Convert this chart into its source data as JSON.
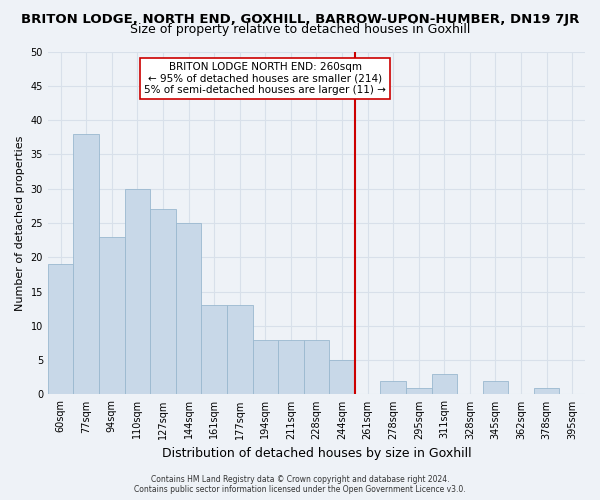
{
  "title": "BRITON LODGE, NORTH END, GOXHILL, BARROW-UPON-HUMBER, DN19 7JR",
  "subtitle": "Size of property relative to detached houses in Goxhill",
  "xlabel": "Distribution of detached houses by size in Goxhill",
  "ylabel": "Number of detached properties",
  "footer_line1": "Contains HM Land Registry data © Crown copyright and database right 2024.",
  "footer_line2": "Contains public sector information licensed under the Open Government Licence v3.0.",
  "bin_labels": [
    "60sqm",
    "77sqm",
    "94sqm",
    "110sqm",
    "127sqm",
    "144sqm",
    "161sqm",
    "177sqm",
    "194sqm",
    "211sqm",
    "228sqm",
    "244sqm",
    "261sqm",
    "278sqm",
    "295sqm",
    "311sqm",
    "328sqm",
    "345sqm",
    "362sqm",
    "378sqm",
    "395sqm"
  ],
  "bar_heights": [
    19,
    38,
    23,
    30,
    27,
    25,
    13,
    13,
    8,
    8,
    8,
    5,
    0,
    2,
    1,
    3,
    0,
    2,
    0,
    1,
    0
  ],
  "bar_color": "#c8d8e8",
  "bar_edge_color": "#9ab8cf",
  "vline_color": "#cc0000",
  "vline_idx": 12,
  "vline_label_title": "BRITON LODGE NORTH END: 260sqm",
  "vline_label_line1": "← 95% of detached houses are smaller (214)",
  "vline_label_line2": "5% of semi-detached houses are larger (11) →",
  "ylim": [
    0,
    50
  ],
  "yticks": [
    0,
    5,
    10,
    15,
    20,
    25,
    30,
    35,
    40,
    45,
    50
  ],
  "bg_color": "#eef2f7",
  "grid_color": "#d8e0ea",
  "title_fontsize": 9.5,
  "subtitle_fontsize": 9,
  "ylabel_fontsize": 8,
  "xlabel_fontsize": 9,
  "tick_fontsize": 7,
  "annotation_fontsize": 7.5,
  "footer_fontsize": 5.5
}
